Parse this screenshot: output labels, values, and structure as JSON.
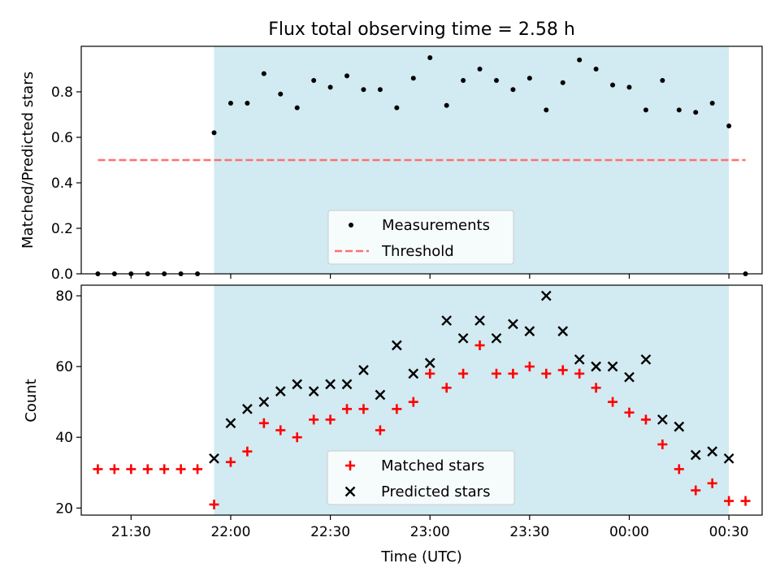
{
  "chart_data": [
    {
      "type": "scatter",
      "title": "Flux total observing time = 2.58 h",
      "xlabel": "",
      "ylabel": "Matched/Predicted stars",
      "xlim": [
        "21:15",
        "00:40"
      ],
      "ylim": [
        0,
        1.0
      ],
      "yticks": [
        0.0,
        0.2,
        0.4,
        0.6,
        0.8
      ],
      "ytick_labels": [
        "0.0",
        "0.2",
        "0.4",
        "0.6",
        "0.8"
      ],
      "grid": false,
      "legend_position": "lower-center",
      "shaded_interval": {
        "start": "21:55",
        "end": "00:30",
        "color": "#add8e6"
      },
      "series": [
        {
          "name": "Measurements",
          "marker": "dot",
          "color": "#000000",
          "x": [
            "21:20",
            "21:25",
            "21:30",
            "21:35",
            "21:40",
            "21:45",
            "21:50",
            "21:55",
            "22:00",
            "22:05",
            "22:10",
            "22:15",
            "22:20",
            "22:25",
            "22:30",
            "22:35",
            "22:40",
            "22:45",
            "22:50",
            "22:55",
            "23:00",
            "23:05",
            "23:10",
            "23:15",
            "23:20",
            "23:25",
            "23:30",
            "23:35",
            "23:40",
            "23:45",
            "23:50",
            "23:55",
            "00:00",
            "00:05",
            "00:10",
            "00:15",
            "00:20",
            "00:25",
            "00:30",
            "00:35"
          ],
          "y": [
            0,
            0,
            0,
            0,
            0,
            0,
            0,
            0.62,
            0.75,
            0.75,
            0.88,
            0.79,
            0.73,
            0.85,
            0.82,
            0.87,
            0.81,
            0.81,
            0.73,
            0.86,
            0.95,
            0.74,
            0.85,
            0.9,
            0.85,
            0.81,
            0.86,
            0.72,
            0.84,
            0.94,
            0.9,
            0.83,
            0.82,
            0.72,
            0.85,
            0.72,
            0.71,
            0.75,
            0.65,
            0
          ]
        },
        {
          "name": "Threshold",
          "line_style": "dashed",
          "color": "#ff7070",
          "x": [
            "21:20",
            "00:35"
          ],
          "y": [
            0.5,
            0.5
          ]
        }
      ]
    },
    {
      "type": "scatter",
      "title": "",
      "xlabel": "Time (UTC)",
      "ylabel": "Count",
      "xlim": [
        "21:15",
        "00:40"
      ],
      "ylim": [
        18,
        83
      ],
      "xticks": [
        "21:30",
        "22:00",
        "22:30",
        "23:00",
        "23:30",
        "00:00",
        "00:30"
      ],
      "yticks": [
        20,
        40,
        60,
        80
      ],
      "ytick_labels": [
        "20",
        "40",
        "60",
        "80"
      ],
      "grid": false,
      "legend_position": "lower-center",
      "shaded_interval": {
        "start": "21:55",
        "end": "00:30",
        "color": "#add8e6"
      },
      "series": [
        {
          "name": "Matched stars",
          "marker": "plus",
          "color": "#ff0000",
          "x": [
            "21:20",
            "21:25",
            "21:30",
            "21:35",
            "21:40",
            "21:45",
            "21:50",
            "21:55",
            "22:00",
            "22:05",
            "22:10",
            "22:15",
            "22:20",
            "22:25",
            "22:30",
            "22:35",
            "22:40",
            "22:45",
            "22:50",
            "22:55",
            "23:00",
            "23:05",
            "23:10",
            "23:15",
            "23:20",
            "23:25",
            "23:30",
            "23:35",
            "23:40",
            "23:45",
            "23:50",
            "23:55",
            "00:00",
            "00:05",
            "00:10",
            "00:15",
            "00:20",
            "00:25",
            "00:30",
            "00:35"
          ],
          "y": [
            31,
            31,
            31,
            31,
            31,
            31,
            31,
            21,
            33,
            36,
            44,
            42,
            40,
            45,
            45,
            48,
            48,
            42,
            48,
            50,
            58,
            54,
            58,
            66,
            58,
            58,
            60,
            58,
            59,
            58,
            54,
            50,
            47,
            45,
            38,
            31,
            25,
            27,
            22,
            22
          ]
        },
        {
          "name": "Predicted stars",
          "marker": "x",
          "color": "#000000",
          "x": [
            "21:55",
            "22:00",
            "22:05",
            "22:10",
            "22:15",
            "22:20",
            "22:25",
            "22:30",
            "22:35",
            "22:40",
            "22:45",
            "22:50",
            "22:55",
            "23:00",
            "23:05",
            "23:10",
            "23:15",
            "23:20",
            "23:25",
            "23:30",
            "23:35",
            "23:40",
            "23:45",
            "23:50",
            "23:55",
            "00:00",
            "00:05",
            "00:10",
            "00:15",
            "00:20",
            "00:25",
            "00:30"
          ],
          "y": [
            34,
            44,
            48,
            50,
            53,
            55,
            53,
            55,
            55,
            59,
            52,
            66,
            58,
            61,
            73,
            68,
            73,
            68,
            72,
            70,
            80,
            70,
            62,
            60,
            60,
            57,
            62,
            45,
            43,
            35,
            36,
            34
          ]
        }
      ]
    }
  ]
}
